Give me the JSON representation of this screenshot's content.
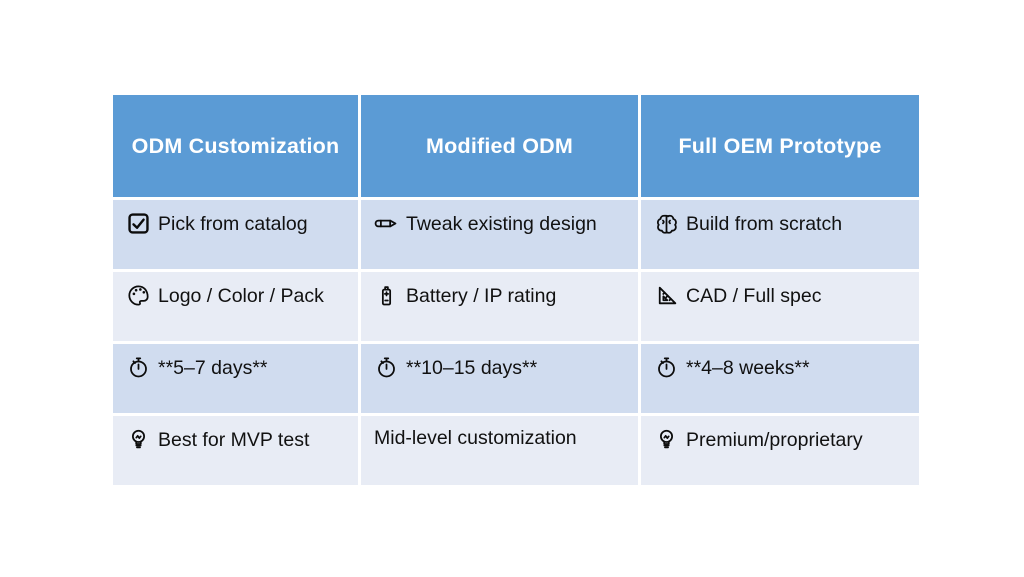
{
  "table": {
    "colors": {
      "page_bg": "#FFFFFF",
      "header_bg": "#5B9BD5",
      "header_text": "#FFFFFF",
      "band_dark": "#D0DCEF",
      "band_light": "#E8ECF5",
      "body_text": "#111111"
    },
    "columns": [
      "ODM Customization",
      "Modified ODM",
      "Full OEM Prototype"
    ],
    "rows": [
      [
        {
          "icon": "checkbox-check-icon",
          "text": "Pick from catalog"
        },
        {
          "icon": "pencil-icon",
          "text": "Tweak existing design"
        },
        {
          "icon": "brain-icon",
          "text": "Build from scratch"
        }
      ],
      [
        {
          "icon": "palette-icon",
          "text": "Logo / Color / Pack"
        },
        {
          "icon": "battery-icon",
          "text": "Battery / IP rating"
        },
        {
          "icon": "triangle-ruler-icon",
          "text": "CAD / Full spec"
        }
      ],
      [
        {
          "icon": "stopwatch-icon",
          "text": "**5–7 days**"
        },
        {
          "icon": "stopwatch-icon",
          "text": "**10–15 days**"
        },
        {
          "icon": "stopwatch-icon",
          "text": "**4–8 weeks**"
        }
      ],
      [
        {
          "icon": "lightbulb-icon",
          "text": "Best for MVP test"
        },
        {
          "icon": null,
          "text": "Mid-level customization"
        },
        {
          "icon": "lightbulb-icon",
          "text": "Premium/proprietary"
        }
      ]
    ]
  }
}
